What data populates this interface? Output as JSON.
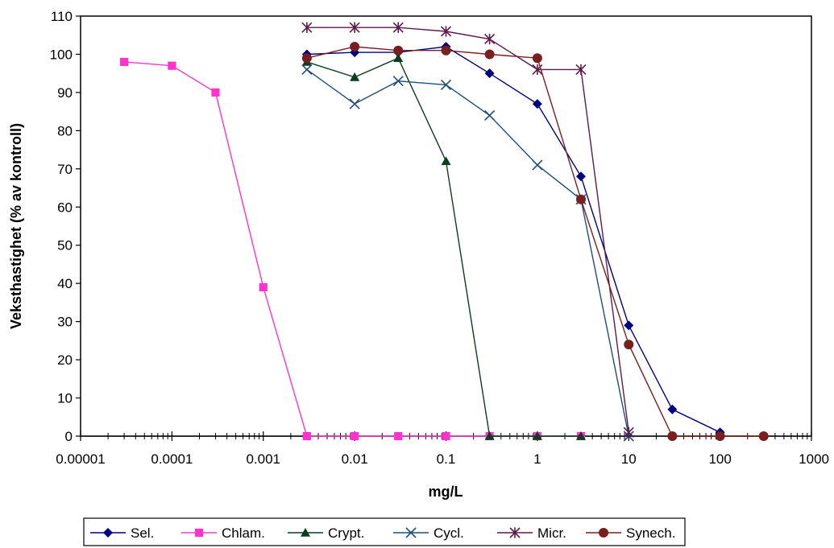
{
  "chart_data": {
    "type": "line",
    "xlabel": "mg/L",
    "ylabel": "Veksthastighet (% av kontroll)",
    "xscale": "log",
    "xlim": [
      1e-05,
      1000
    ],
    "ylim": [
      0,
      110
    ],
    "x_tick_labels": [
      "0.00001",
      "0.0001",
      "0.001",
      "0.01",
      "0.1",
      "1",
      "10",
      "100",
      "1000"
    ],
    "y_tick_labels": [
      "0",
      "10",
      "20",
      "30",
      "40",
      "50",
      "60",
      "70",
      "80",
      "90",
      "100",
      "110"
    ],
    "grid": false,
    "legend_position": "bottom",
    "series": [
      {
        "name": "Sel.",
        "color": "#000080",
        "marker": "diamond",
        "x": [
          0.003,
          0.01,
          0.03,
          0.1,
          0.3,
          1,
          3,
          10,
          30,
          100
        ],
        "y": [
          100,
          100.5,
          100.5,
          102,
          95,
          87,
          68,
          29,
          7,
          1
        ]
      },
      {
        "name": "Chlam.",
        "color": "#ff33cc",
        "marker": "square",
        "x": [
          3e-05,
          0.0001,
          0.0003,
          0.001,
          0.003,
          0.01,
          0.03,
          0.1,
          0.3,
          1,
          3
        ],
        "y": [
          98,
          97,
          90,
          39,
          0,
          0,
          0,
          0,
          0,
          0,
          0
        ]
      },
      {
        "name": "Crypt.",
        "color": "#0b3d1f",
        "marker": "triangle",
        "x": [
          0.003,
          0.01,
          0.03,
          0.1,
          0.3,
          1,
          3
        ],
        "y": [
          98,
          94,
          99,
          72,
          0,
          0,
          0
        ]
      },
      {
        "name": "Cycl.",
        "color": "#1f4e79",
        "marker": "x",
        "x": [
          0.003,
          0.01,
          0.03,
          0.1,
          0.3,
          1,
          3,
          10
        ],
        "y": [
          96,
          87,
          93,
          92,
          84,
          71,
          62,
          0
        ]
      },
      {
        "name": "Micr.",
        "color": "#5c1a4a",
        "marker": "star",
        "x": [
          0.003,
          0.01,
          0.03,
          0.1,
          0.3,
          1,
          3,
          10
        ],
        "y": [
          107,
          107,
          107,
          106,
          104,
          96,
          96,
          1
        ]
      },
      {
        "name": "Synech.",
        "color": "#7a1f1f",
        "marker": "circle",
        "x": [
          0.003,
          0.01,
          0.03,
          0.1,
          0.3,
          1,
          3,
          10,
          30,
          100,
          300
        ],
        "y": [
          99,
          102,
          101,
          101,
          100,
          99,
          62,
          24,
          0,
          0,
          0
        ]
      }
    ]
  }
}
